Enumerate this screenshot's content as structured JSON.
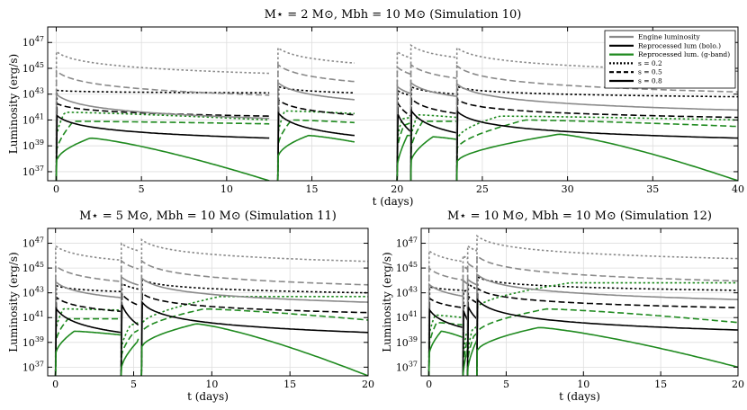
{
  "chart_data": [
    {
      "type": "line",
      "title": "M⋆ = 2 M⊙, Mbh = 10 M⊙ (Simulation 10)",
      "xlabel": "t (days)",
      "ylabel": "Luminosity (erg/s)",
      "xlim": [
        -0.5,
        40
      ],
      "ylim": [
        36.3,
        48.2
      ],
      "y_scale": "log",
      "xticks": [
        0,
        5,
        10,
        15,
        20,
        25,
        30,
        35,
        40
      ],
      "yticks": [
        37,
        39,
        41,
        43,
        45,
        47
      ],
      "grid": true,
      "legend": "top-right",
      "legend_entries": [
        {
          "label": "Engine luminosity",
          "color": "#8a8a8a",
          "style": "solid"
        },
        {
          "label": "Reprocessed lum (bolo.)",
          "color": "#000000",
          "style": "solid"
        },
        {
          "label": "Reprocessed lum. (g-band)",
          "color": "#1f8a1f",
          "style": "solid"
        },
        {
          "label": "s = 0.2",
          "color": "#000000",
          "style": "dotted"
        },
        {
          "label": "s = 0.5",
          "color": "#000000",
          "style": "dashed"
        },
        {
          "label": "s = 0.8",
          "color": "#000000",
          "style": "solid"
        }
      ],
      "flares": [
        {
          "t0": 0,
          "t1": 12.5,
          "gray": [
            46.3,
            44.8,
            43.0
          ],
          "blackpk": [
            43.3,
            42.3,
            41.4
          ],
          "blackend": [
            43.1,
            41.3,
            39.6
          ],
          "green": [
            [
              0.5,
              41.2,
              41.6,
              41.0
            ],
            [
              1.0,
              40.2,
              40.9,
              40.7
            ],
            [
              2.0,
              39.5,
              39.6,
              36.3
            ]
          ]
        },
        {
          "t0": 13.0,
          "t1": 17.5,
          "gray": [
            46.6,
            45.3,
            43.9
          ],
          "blackpk": [
            43.6,
            42.6,
            41.6
          ],
          "blackend": [
            43.1,
            41.4,
            39.8
          ],
          "green": [
            [
              0.4,
              41.3,
              41.7,
              41.5
            ],
            [
              0.8,
              40.6,
              41.0,
              40.8
            ],
            [
              1.8,
              39.8,
              39.8,
              39.3
            ]
          ]
        },
        {
          "t0": 20.0,
          "t1": 20.8,
          "gray": [
            46.3,
            45.1,
            43.6
          ],
          "blackpk": [
            43.3,
            42.4,
            41.6
          ],
          "blackend": [
            42.9,
            41.3,
            40.1
          ],
          "green": [
            [
              0.3,
              40.8,
              41.1,
              41.2
            ],
            [
              0.4,
              40.2,
              40.6,
              40.8
            ],
            [
              0.6,
              39.0,
              39.8,
              39.8
            ]
          ]
        },
        {
          "t0": 20.8,
          "t1": 23.5,
          "gray": [
            46.8,
            45.3,
            43.9
          ],
          "blackpk": [
            43.6,
            42.7,
            41.8
          ],
          "blackend": [
            43.0,
            41.5,
            40.0
          ],
          "green": [
            [
              0.4,
              41.0,
              41.4,
              41.2
            ],
            [
              0.7,
              40.3,
              40.9,
              40.9
            ],
            [
              1.3,
              39.4,
              39.7,
              39.5
            ]
          ]
        },
        {
          "t0": 23.5,
          "t1": 40.0,
          "gray": [
            46.6,
            45.2,
            43.8
          ],
          "blackpk": [
            43.6,
            42.6,
            41.7
          ],
          "blackend": [
            42.8,
            41.2,
            39.6
          ],
          "green": [
            [
              2.5,
              41.2,
              41.3,
              41.0
            ],
            [
              4.0,
              40.5,
              41.0,
              40.5
            ],
            [
              6.0,
              39.5,
              39.9,
              36.3
            ]
          ]
        }
      ]
    },
    {
      "type": "line",
      "title": "M⋆ = 5 M⊙, Mbh = 10 M⊙ (Simulation 11)",
      "xlabel": "t (days)",
      "ylabel": "Luminosity (erg/s)",
      "xlim": [
        -0.5,
        20
      ],
      "ylim": [
        36.3,
        48.2
      ],
      "y_scale": "log",
      "xticks": [
        0,
        5,
        10,
        15,
        20
      ],
      "yticks": [
        37,
        39,
        41,
        43,
        45,
        47
      ],
      "grid": true,
      "flares": [
        {
          "t0": 0,
          "t1": 4.2,
          "gray": [
            46.8,
            45.2,
            43.9
          ],
          "blackpk": [
            43.6,
            42.7,
            41.8
          ],
          "blackend": [
            43.1,
            41.5,
            39.8
          ],
          "green": [
            [
              0.5,
              41.4,
              41.7,
              41.6
            ],
            [
              0.8,
              40.6,
              40.9,
              40.9
            ],
            [
              1.2,
              39.7,
              39.9,
              39.6
            ]
          ]
        },
        {
          "t0": 4.2,
          "t1": 5.3,
          "gray": [
            47.0,
            45.6,
            44.3
          ],
          "blackpk": [
            43.8,
            43.0,
            42.2
          ],
          "blackend": [
            43.3,
            42.0,
            40.4
          ],
          "green": [
            [
              0.6,
              40.0,
              40.4,
              40.6
            ],
            [
              0.8,
              39.4,
              39.8,
              40.0
            ],
            [
              1.0,
              38.5,
              39.0,
              39.3
            ]
          ]
        },
        {
          "t0": 5.5,
          "t1": 20.0,
          "gray": [
            47.3,
            45.6,
            44.2
          ],
          "blackpk": [
            44.1,
            43.0,
            42.3
          ],
          "blackend": [
            43.0,
            41.4,
            39.8
          ],
          "green": [
            [
              5.0,
              42.2,
              42.7,
              42.7
            ],
            [
              4.0,
              41.5,
              41.7,
              40.8
            ],
            [
              3.5,
              40.3,
              40.5,
              36.3
            ]
          ]
        }
      ]
    },
    {
      "type": "line",
      "title": "M⋆ = 10 M⊙, Mbh = 10 M⊙ (Simulation 12)",
      "xlabel": "t (days)",
      "ylabel": "Luminosity (erg/s)",
      "xlim": [
        -0.5,
        20
      ],
      "ylim": [
        36.3,
        48.2
      ],
      "y_scale": "log",
      "xticks": [
        0,
        5,
        10,
        15,
        20
      ],
      "yticks": [
        37,
        39,
        41,
        43,
        45,
        47
      ],
      "grid": true,
      "flares": [
        {
          "t0": 0,
          "t1": 2.2,
          "gray": [
            46.4,
            45.0,
            43.7
          ],
          "blackpk": [
            43.5,
            42.6,
            41.7
          ],
          "blackend": [
            43.2,
            41.8,
            40.2
          ],
          "green": [
            [
              0.4,
              40.9,
              41.2,
              41.0
            ],
            [
              0.5,
              40.2,
              40.6,
              40.4
            ],
            [
              0.8,
              39.6,
              39.9,
              39.4
            ]
          ]
        },
        {
          "t0": 2.2,
          "t1": 2.5,
          "gray": [
            46.0,
            45.2,
            44.0
          ],
          "blackpk": [
            43.1,
            42.0,
            41.7
          ],
          "blackend": [
            43.2,
            41.9,
            40.8
          ],
          "green": [
            [
              0.2,
              39.0,
              39.6,
              39.9
            ],
            [
              0.25,
              38.5,
              39.0,
              39.3
            ],
            [
              0.3,
              37.8,
              38.5,
              38.8
            ]
          ]
        },
        {
          "t0": 2.5,
          "t1": 3.1,
          "gray": [
            46.8,
            45.4,
            44.1
          ],
          "blackpk": [
            43.8,
            42.8,
            42.0
          ],
          "blackend": [
            43.3,
            42.2,
            40.9
          ],
          "green": [
            [
              0.3,
              39.5,
              40.0,
              40.3
            ],
            [
              0.4,
              39.0,
              39.5,
              39.8
            ],
            [
              0.5,
              38.3,
              38.9,
              39.2
            ]
          ]
        },
        {
          "t0": 3.1,
          "t1": 20.0,
          "gray": [
            47.6,
            46.0,
            44.5
          ],
          "blackpk": [
            44.3,
            43.4,
            42.5
          ],
          "blackend": [
            43.2,
            41.8,
            40.0
          ],
          "green": [
            [
              6.0,
              43.5,
              43.8,
              43.8
            ],
            [
              4.5,
              41.5,
              41.7,
              40.6
            ],
            [
              4.0,
              40.0,
              40.2,
              37.0
            ]
          ]
        }
      ]
    }
  ]
}
